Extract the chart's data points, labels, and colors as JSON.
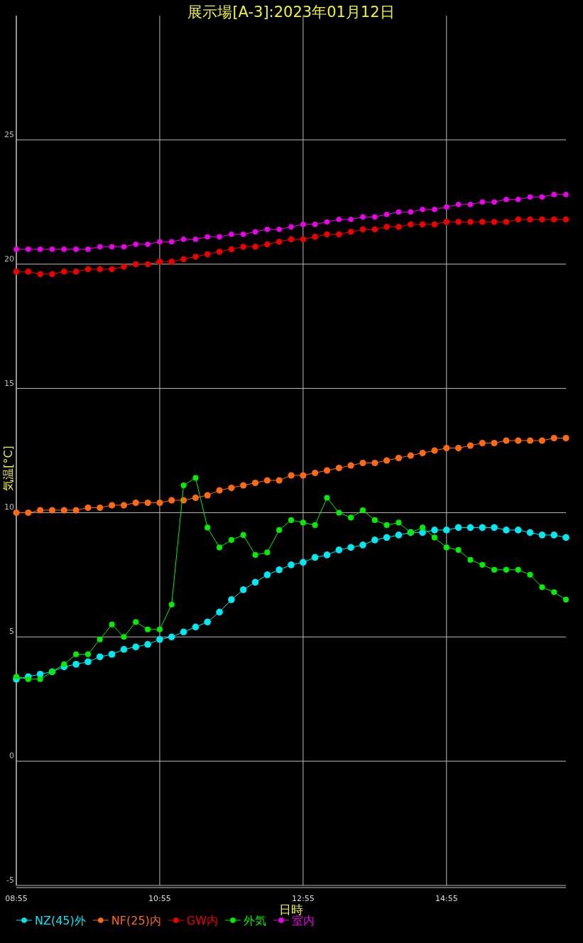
{
  "chart_data": {
    "type": "line",
    "title": "展示場[A-3]:2023年01月12日",
    "xlabel": "日時",
    "ylabel": "気温[°C]",
    "x": [
      8.917,
      9.083,
      9.25,
      9.417,
      9.583,
      9.75,
      9.917,
      10.083,
      10.25,
      10.417,
      10.583,
      10.75,
      10.917,
      11.083,
      11.25,
      11.417,
      11.583,
      11.75,
      11.917,
      12.083,
      12.25,
      12.417,
      12.583,
      12.75,
      12.917,
      13.083,
      13.25,
      13.417,
      13.583,
      13.75,
      13.917,
      14.083,
      14.25,
      14.417,
      14.583,
      14.75,
      14.917,
      15.083,
      15.25,
      15.417,
      15.583,
      15.75,
      15.917,
      16.083,
      16.25,
      16.417,
      16.583
    ],
    "series": [
      {
        "name": "NZ(45)外",
        "color": "#00e8f0",
        "values": [
          3.3,
          3.4,
          3.5,
          3.6,
          3.8,
          3.9,
          4.0,
          4.2,
          4.3,
          4.5,
          4.6,
          4.7,
          4.9,
          5.0,
          5.2,
          5.4,
          5.6,
          6.0,
          6.5,
          6.9,
          7.2,
          7.5,
          7.7,
          7.9,
          8.0,
          8.2,
          8.3,
          8.5,
          8.6,
          8.7,
          8.9,
          9.0,
          9.1,
          9.2,
          9.2,
          9.3,
          9.3,
          9.4,
          9.4,
          9.4,
          9.4,
          9.3,
          9.3,
          9.2,
          9.1,
          9.1,
          9.0
        ]
      },
      {
        "name": "NF(25)内",
        "color": "#ff6a10",
        "values": [
          10.0,
          10.0,
          10.1,
          10.1,
          10.1,
          10.1,
          10.2,
          10.2,
          10.3,
          10.3,
          10.4,
          10.4,
          10.4,
          10.5,
          10.5,
          10.6,
          10.7,
          10.9,
          11.0,
          11.1,
          11.2,
          11.3,
          11.3,
          11.5,
          11.5,
          11.6,
          11.7,
          11.8,
          11.9,
          12.0,
          12.0,
          12.1,
          12.2,
          12.3,
          12.4,
          12.5,
          12.6,
          12.6,
          12.7,
          12.8,
          12.8,
          12.9,
          12.9,
          12.9,
          12.9,
          13.0,
          13.0
        ]
      },
      {
        "name": "GW内",
        "color": "#ee0000",
        "values": [
          19.7,
          19.7,
          19.6,
          19.6,
          19.7,
          19.7,
          19.8,
          19.8,
          19.8,
          19.9,
          20.0,
          20.0,
          20.1,
          20.1,
          20.2,
          20.3,
          20.4,
          20.5,
          20.6,
          20.7,
          20.7,
          20.8,
          20.9,
          21.0,
          21.0,
          21.1,
          21.2,
          21.2,
          21.3,
          21.4,
          21.4,
          21.5,
          21.5,
          21.6,
          21.6,
          21.6,
          21.7,
          21.7,
          21.7,
          21.7,
          21.7,
          21.7,
          21.8,
          21.8,
          21.8,
          21.8,
          21.8
        ]
      },
      {
        "name": "外気",
        "color": "#00ee00",
        "values": [
          3.4,
          3.3,
          3.3,
          3.6,
          3.9,
          4.3,
          4.3,
          4.9,
          5.5,
          5.0,
          5.6,
          5.3,
          5.3,
          6.3,
          11.1,
          11.4,
          9.4,
          8.6,
          8.9,
          9.1,
          8.3,
          8.4,
          9.3,
          9.7,
          9.6,
          9.5,
          10.6,
          10.0,
          9.8,
          10.1,
          9.7,
          9.5,
          9.6,
          9.2,
          9.4,
          9.0,
          8.6,
          8.5,
          8.1,
          7.9,
          7.7,
          7.7,
          7.7,
          7.5,
          7.0,
          6.8,
          6.5
        ]
      },
      {
        "name": "室内",
        "color": "#ee00ee",
        "values": [
          20.6,
          20.6,
          20.6,
          20.6,
          20.6,
          20.6,
          20.6,
          20.7,
          20.7,
          20.7,
          20.8,
          20.8,
          20.9,
          20.9,
          21.0,
          21.0,
          21.1,
          21.1,
          21.2,
          21.2,
          21.3,
          21.4,
          21.4,
          21.5,
          21.6,
          21.6,
          21.7,
          21.8,
          21.8,
          21.9,
          21.9,
          22.0,
          22.1,
          22.1,
          22.2,
          22.2,
          22.3,
          22.4,
          22.4,
          22.5,
          22.5,
          22.6,
          22.6,
          22.7,
          22.7,
          22.8,
          22.8
        ]
      }
    ],
    "xlim": [
      8.917,
      16.583
    ],
    "ylim": [
      -5,
      30
    ],
    "xticks": [
      {
        "value": 8.917,
        "label": "08:55"
      },
      {
        "value": 10.917,
        "label": "10:55"
      },
      {
        "value": 12.917,
        "label": "12:55"
      },
      {
        "value": 14.917,
        "label": "14:55"
      }
    ],
    "yticks": [
      -5,
      0,
      5,
      10,
      15,
      20,
      25
    ],
    "grid": true,
    "legend": "bottom left",
    "marker": "circle",
    "line_style": "solid"
  }
}
